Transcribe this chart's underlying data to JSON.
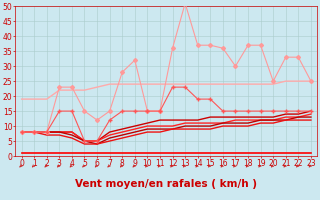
{
  "xlabel": "Vent moyen/en rafales ( km/h )",
  "bg_color": "#cce8f0",
  "grid_color": "#aacccc",
  "xlim": [
    -0.5,
    23.5
  ],
  "ylim": [
    0,
    50
  ],
  "yticks": [
    0,
    5,
    10,
    15,
    20,
    25,
    30,
    35,
    40,
    45,
    50
  ],
  "xticks": [
    0,
    1,
    2,
    3,
    4,
    5,
    6,
    7,
    8,
    9,
    10,
    11,
    12,
    13,
    14,
    15,
    16,
    17,
    18,
    19,
    20,
    21,
    22,
    23
  ],
  "series": [
    {
      "x": [
        0,
        1,
        2,
        3,
        4,
        5,
        6,
        7,
        8,
        9,
        10,
        11,
        12,
        13,
        14,
        15,
        16,
        17,
        18,
        19,
        20,
        21,
        22,
        23
      ],
      "y": [
        8,
        8,
        8,
        23,
        23,
        15,
        12,
        15,
        28,
        32,
        15,
        15,
        36,
        51,
        37,
        37,
        36,
        30,
        37,
        37,
        25,
        33,
        33,
        25
      ],
      "color": "#ff9999",
      "lw": 0.8,
      "marker": "D",
      "ms": 2.0,
      "zorder": 3
    },
    {
      "x": [
        0,
        1,
        2,
        3,
        4,
        5,
        6,
        7,
        8,
        9,
        10,
        11,
        12,
        13,
        14,
        15,
        16,
        17,
        18,
        19,
        20,
        21,
        22,
        23
      ],
      "y": [
        19,
        19,
        19,
        22,
        22,
        22,
        23,
        24,
        24,
        24,
        24,
        24,
        24,
        24,
        24,
        24,
        24,
        24,
        24,
        24,
        24,
        25,
        25,
        25
      ],
      "color": "#ffaaaa",
      "lw": 1.0,
      "marker": null,
      "ms": 0,
      "zorder": 2
    },
    {
      "x": [
        0,
        1,
        2,
        3,
        4,
        5,
        6,
        7,
        8,
        9,
        10,
        11,
        12,
        13,
        14,
        15,
        16,
        17,
        18,
        19,
        20,
        21,
        22,
        23
      ],
      "y": [
        8,
        8,
        8,
        15,
        15,
        5,
        5,
        12,
        15,
        15,
        15,
        15,
        23,
        23,
        19,
        19,
        15,
        15,
        15,
        15,
        15,
        15,
        15,
        15
      ],
      "color": "#ff5555",
      "lw": 0.8,
      "marker": "+",
      "ms": 3.5,
      "zorder": 4
    },
    {
      "x": [
        0,
        1,
        2,
        3,
        4,
        5,
        6,
        7,
        8,
        9,
        10,
        11,
        12,
        13,
        14,
        15,
        16,
        17,
        18,
        19,
        20,
        21,
        22,
        23
      ],
      "y": [
        8,
        8,
        8,
        8,
        8,
        5,
        5,
        8,
        9,
        10,
        11,
        12,
        12,
        12,
        12,
        13,
        13,
        13,
        13,
        13,
        13,
        14,
        14,
        15
      ],
      "color": "#cc0000",
      "lw": 1.0,
      "marker": null,
      "ms": 0,
      "zorder": 2
    },
    {
      "x": [
        0,
        1,
        2,
        3,
        4,
        5,
        6,
        7,
        8,
        9,
        10,
        11,
        12,
        13,
        14,
        15,
        16,
        17,
        18,
        19,
        20,
        21,
        22,
        23
      ],
      "y": [
        8,
        8,
        8,
        8,
        8,
        5,
        5,
        7,
        8,
        9,
        10,
        10,
        10,
        11,
        11,
        11,
        11,
        12,
        12,
        12,
        12,
        13,
        13,
        14
      ],
      "color": "#ff2222",
      "lw": 1.0,
      "marker": null,
      "ms": 0,
      "zorder": 2
    },
    {
      "x": [
        0,
        1,
        2,
        3,
        4,
        5,
        6,
        7,
        8,
        9,
        10,
        11,
        12,
        13,
        14,
        15,
        16,
        17,
        18,
        19,
        20,
        21,
        22,
        23
      ],
      "y": [
        8,
        8,
        8,
        8,
        7,
        5,
        4,
        6,
        7,
        8,
        9,
        9,
        9,
        10,
        10,
        10,
        11,
        11,
        11,
        12,
        12,
        12,
        13,
        13
      ],
      "color": "#bb0000",
      "lw": 1.0,
      "marker": null,
      "ms": 0,
      "zorder": 2
    },
    {
      "x": [
        0,
        1,
        2,
        3,
        4,
        5,
        6,
        7,
        8,
        9,
        10,
        11,
        12,
        13,
        14,
        15,
        16,
        17,
        18,
        19,
        20,
        21,
        22,
        23
      ],
      "y": [
        8,
        8,
        7,
        7,
        6,
        4,
        4,
        5,
        6,
        7,
        8,
        8,
        9,
        9,
        9,
        9,
        10,
        10,
        10,
        11,
        11,
        12,
        12,
        12
      ],
      "color": "#ee1111",
      "lw": 1.0,
      "marker": null,
      "ms": 0,
      "zorder": 2
    },
    {
      "x": [
        0,
        1,
        2,
        3,
        4,
        5,
        6,
        7,
        8,
        9,
        10,
        11,
        12,
        13,
        14,
        15,
        16,
        17,
        18,
        19,
        20,
        21,
        22,
        23
      ],
      "y": [
        1,
        1,
        1,
        1,
        1,
        1,
        1,
        1,
        1,
        1,
        1,
        1,
        1,
        1,
        1,
        1,
        1,
        1,
        1,
        1,
        1,
        1,
        1,
        1
      ],
      "color": "#ff0000",
      "lw": 1.2,
      "marker": null,
      "ms": 0,
      "zorder": 5
    }
  ],
  "xlabel_color": "#cc0000",
  "xlabel_fontsize": 7.5,
  "tick_color": "#cc0000",
  "tick_fontsize": 5.5,
  "ytick_fontsize": 5.5,
  "arrow_color": "#cc2222"
}
